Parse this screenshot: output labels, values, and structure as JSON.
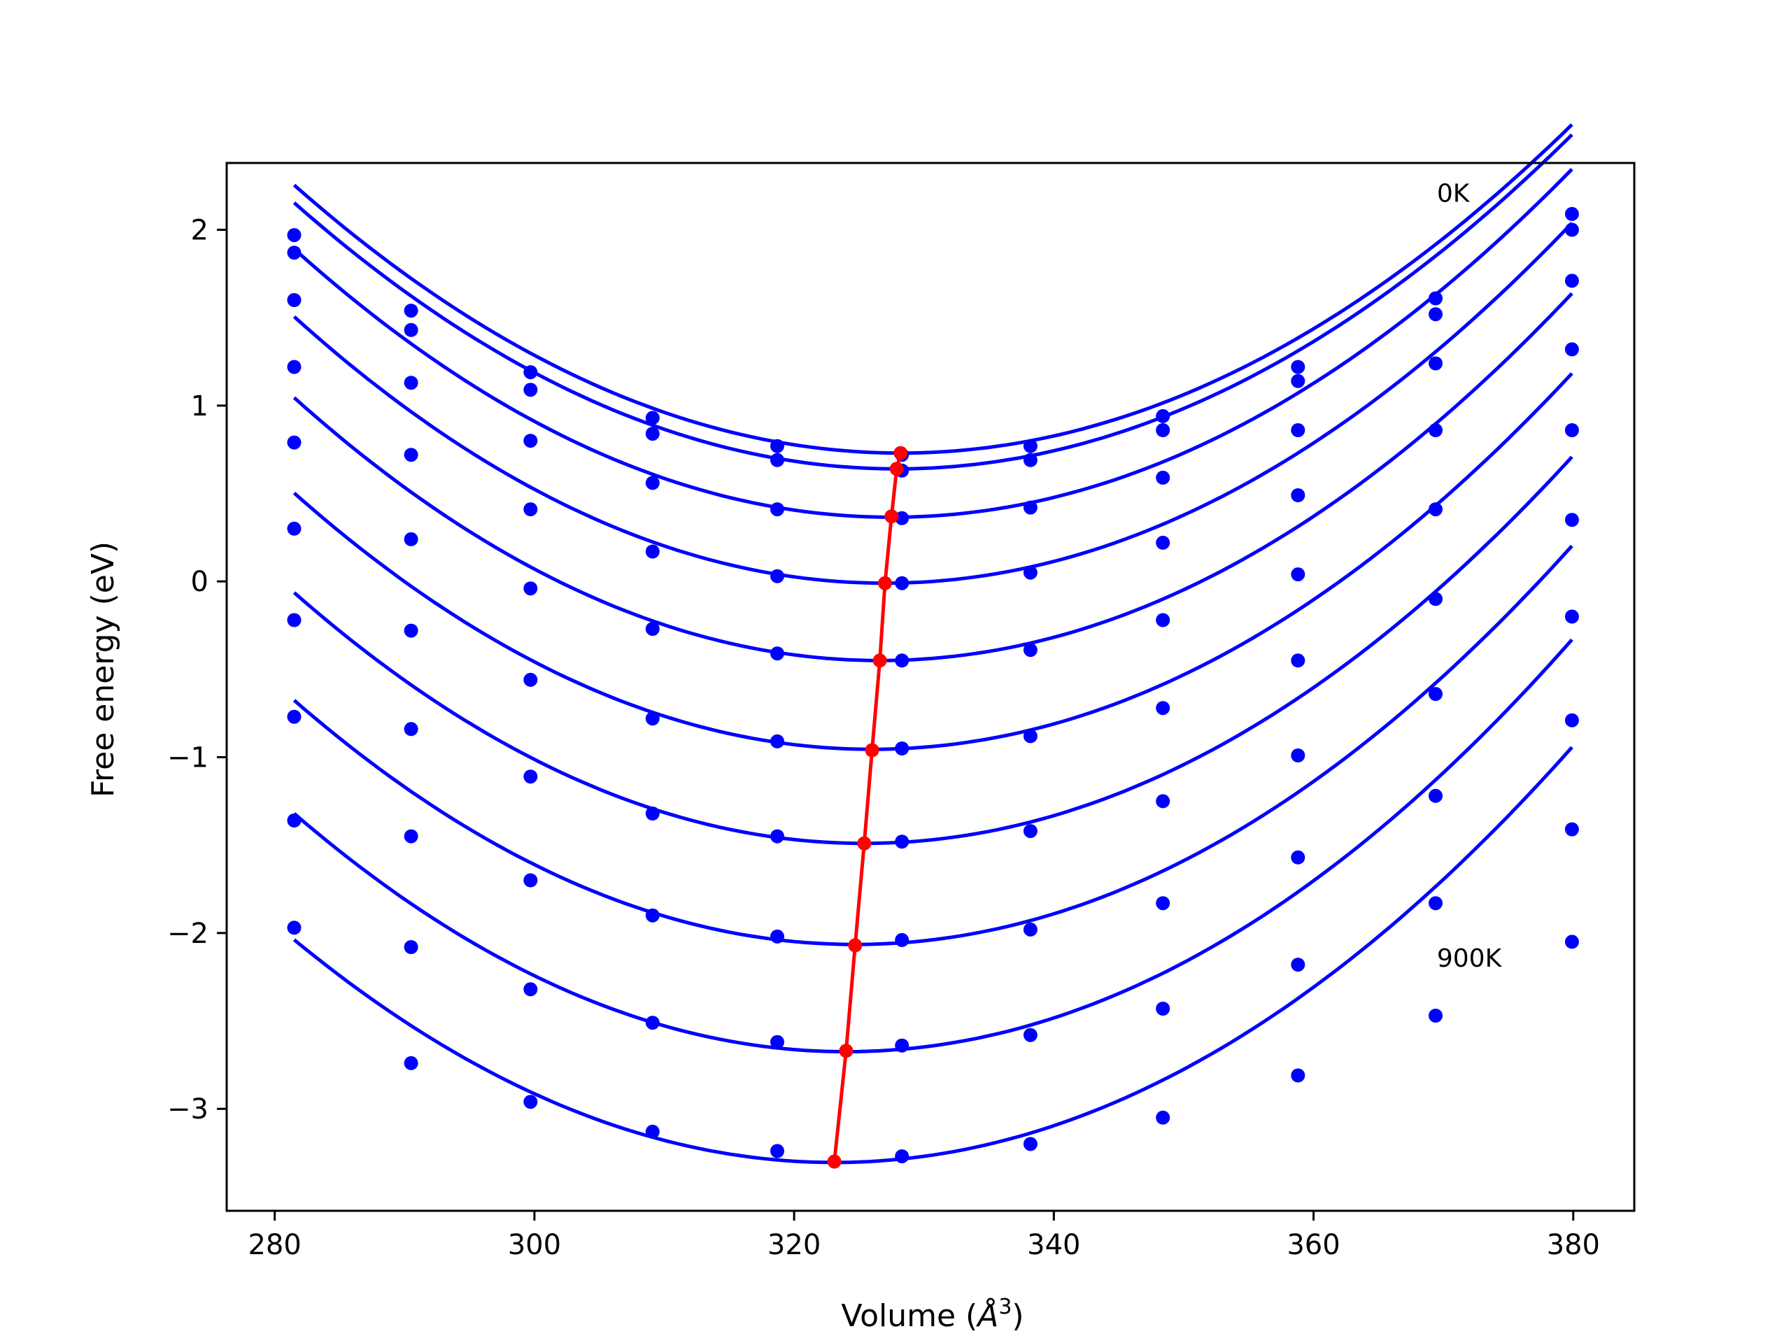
{
  "chart_data": {
    "type": "scatter",
    "title": "",
    "xlabel": "Volume (",
    "xlabel_unit": "Å",
    "xlabel_sup": "3",
    "xlabel_close": ")",
    "ylabel": "Free energy (eV)",
    "xlim": [
      276.3,
      384.7
    ],
    "ylim": [
      -3.58,
      2.38
    ],
    "xticks": [
      280,
      300,
      320,
      340,
      360,
      380
    ],
    "xtick_labels": [
      "280",
      "300",
      "320",
      "340",
      "360",
      "380"
    ],
    "yticks": [
      2,
      1,
      0,
      -1,
      -2,
      -3
    ],
    "ytick_labels": [
      "2",
      "1",
      "0",
      "−1",
      "−2",
      "−3"
    ],
    "grid": false,
    "colors": {
      "points": "#0000ff",
      "curves": "#0000ff",
      "minimum_line": "#ff0000",
      "axes": "#000000"
    },
    "annotations": [
      {
        "text": "0K",
        "x": 369.5,
        "y": 2.21
      },
      {
        "text": "900K",
        "x": 369.5,
        "y": -2.14
      }
    ],
    "x": [
      281.5,
      290.5,
      299.7,
      309.1,
      318.7,
      328.3,
      338.2,
      348.4,
      358.8,
      369.4,
      379.9
    ],
    "series": [
      {
        "values": [
          1.97,
          1.54,
          1.19,
          0.93,
          0.77,
          0.72,
          0.77,
          0.94,
          1.22,
          1.61,
          2.09
        ],
        "fit": {
          "a": 0.000699,
          "c": 0.73,
          "vmin": 328.2,
          "x0": 281.5,
          "x1": 379.9
        }
      },
      {
        "values": [
          1.87,
          1.43,
          1.09,
          0.84,
          0.69,
          0.63,
          0.69,
          0.86,
          1.14,
          1.52,
          2.0
        ],
        "fit": {
          "a": 0.000703,
          "c": 0.64,
          "vmin": 327.9,
          "x0": 281.5,
          "x1": 379.9
        }
      },
      {
        "values": [
          1.6,
          1.13,
          0.8,
          0.56,
          0.41,
          0.36,
          0.42,
          0.59,
          0.86,
          1.24,
          1.71
        ],
        "fit": {
          "a": 0.000721,
          "c": 0.365,
          "vmin": 327.5,
          "x0": 281.5,
          "x1": 379.9
        }
      },
      {
        "values": [
          1.22,
          0.72,
          0.41,
          0.17,
          0.03,
          -0.01,
          0.05,
          0.22,
          0.49,
          0.86,
          1.32
        ],
        "fit": {
          "a": 0.000732,
          "c": -0.01,
          "vmin": 327.0,
          "x0": 281.5,
          "x1": 379.9
        }
      },
      {
        "values": [
          0.79,
          0.24,
          -0.04,
          -0.27,
          -0.41,
          -0.45,
          -0.39,
          -0.22,
          0.04,
          0.41,
          0.86
        ],
        "fit": {
          "a": 0.000735,
          "c": -0.45,
          "vmin": 326.6,
          "x0": 281.5,
          "x1": 379.9
        }
      },
      {
        "values": [
          0.3,
          -0.28,
          -0.56,
          -0.78,
          -0.91,
          -0.95,
          -0.88,
          -0.72,
          -0.45,
          -0.1,
          0.35
        ],
        "fit": {
          "a": 0.000736,
          "c": -0.955,
          "vmin": 326.0,
          "x0": 281.5,
          "x1": 379.9
        }
      },
      {
        "values": [
          -0.22,
          -0.84,
          -1.11,
          -1.32,
          -1.45,
          -1.48,
          -1.42,
          -1.25,
          -0.99,
          -0.64,
          -0.2
        ],
        "fit": {
          "a": 0.00074,
          "c": -1.49,
          "vmin": 325.4,
          "x0": 281.5,
          "x1": 379.9
        }
      },
      {
        "values": [
          -0.77,
          -1.45,
          -1.7,
          -1.9,
          -2.02,
          -2.04,
          -1.98,
          -1.83,
          -1.57,
          -1.22,
          -0.79
        ],
        "fit": {
          "a": 0.000744,
          "c": -2.065,
          "vmin": 324.7,
          "x0": 281.5,
          "x1": 379.9
        }
      },
      {
        "values": [
          -1.36,
          -2.08,
          -2.32,
          -2.51,
          -2.62,
          -2.64,
          -2.58,
          -2.43,
          -2.18,
          -1.83,
          -1.41
        ],
        "fit": {
          "a": 0.00075,
          "c": -2.675,
          "vmin": 324.0,
          "x0": 281.5,
          "x1": 379.9
        }
      },
      {
        "values": [
          -1.97,
          -2.74,
          -2.96,
          -3.13,
          -3.24,
          -3.27,
          -3.2,
          -3.05,
          -2.81,
          -2.47,
          -2.05
        ],
        "fit": {
          "a": 0.000732,
          "c": -3.305,
          "vmin": 323.1,
          "x0": 281.5,
          "x1": 379.9
        }
      }
    ],
    "minimum_line": {
      "x": [
        328.2,
        327.9,
        327.5,
        327.0,
        326.6,
        326.0,
        325.4,
        324.7,
        324.0,
        323.1
      ],
      "y": [
        0.73,
        0.64,
        0.37,
        -0.01,
        -0.45,
        -0.96,
        -1.49,
        -2.07,
        -2.67,
        -3.3
      ]
    }
  }
}
